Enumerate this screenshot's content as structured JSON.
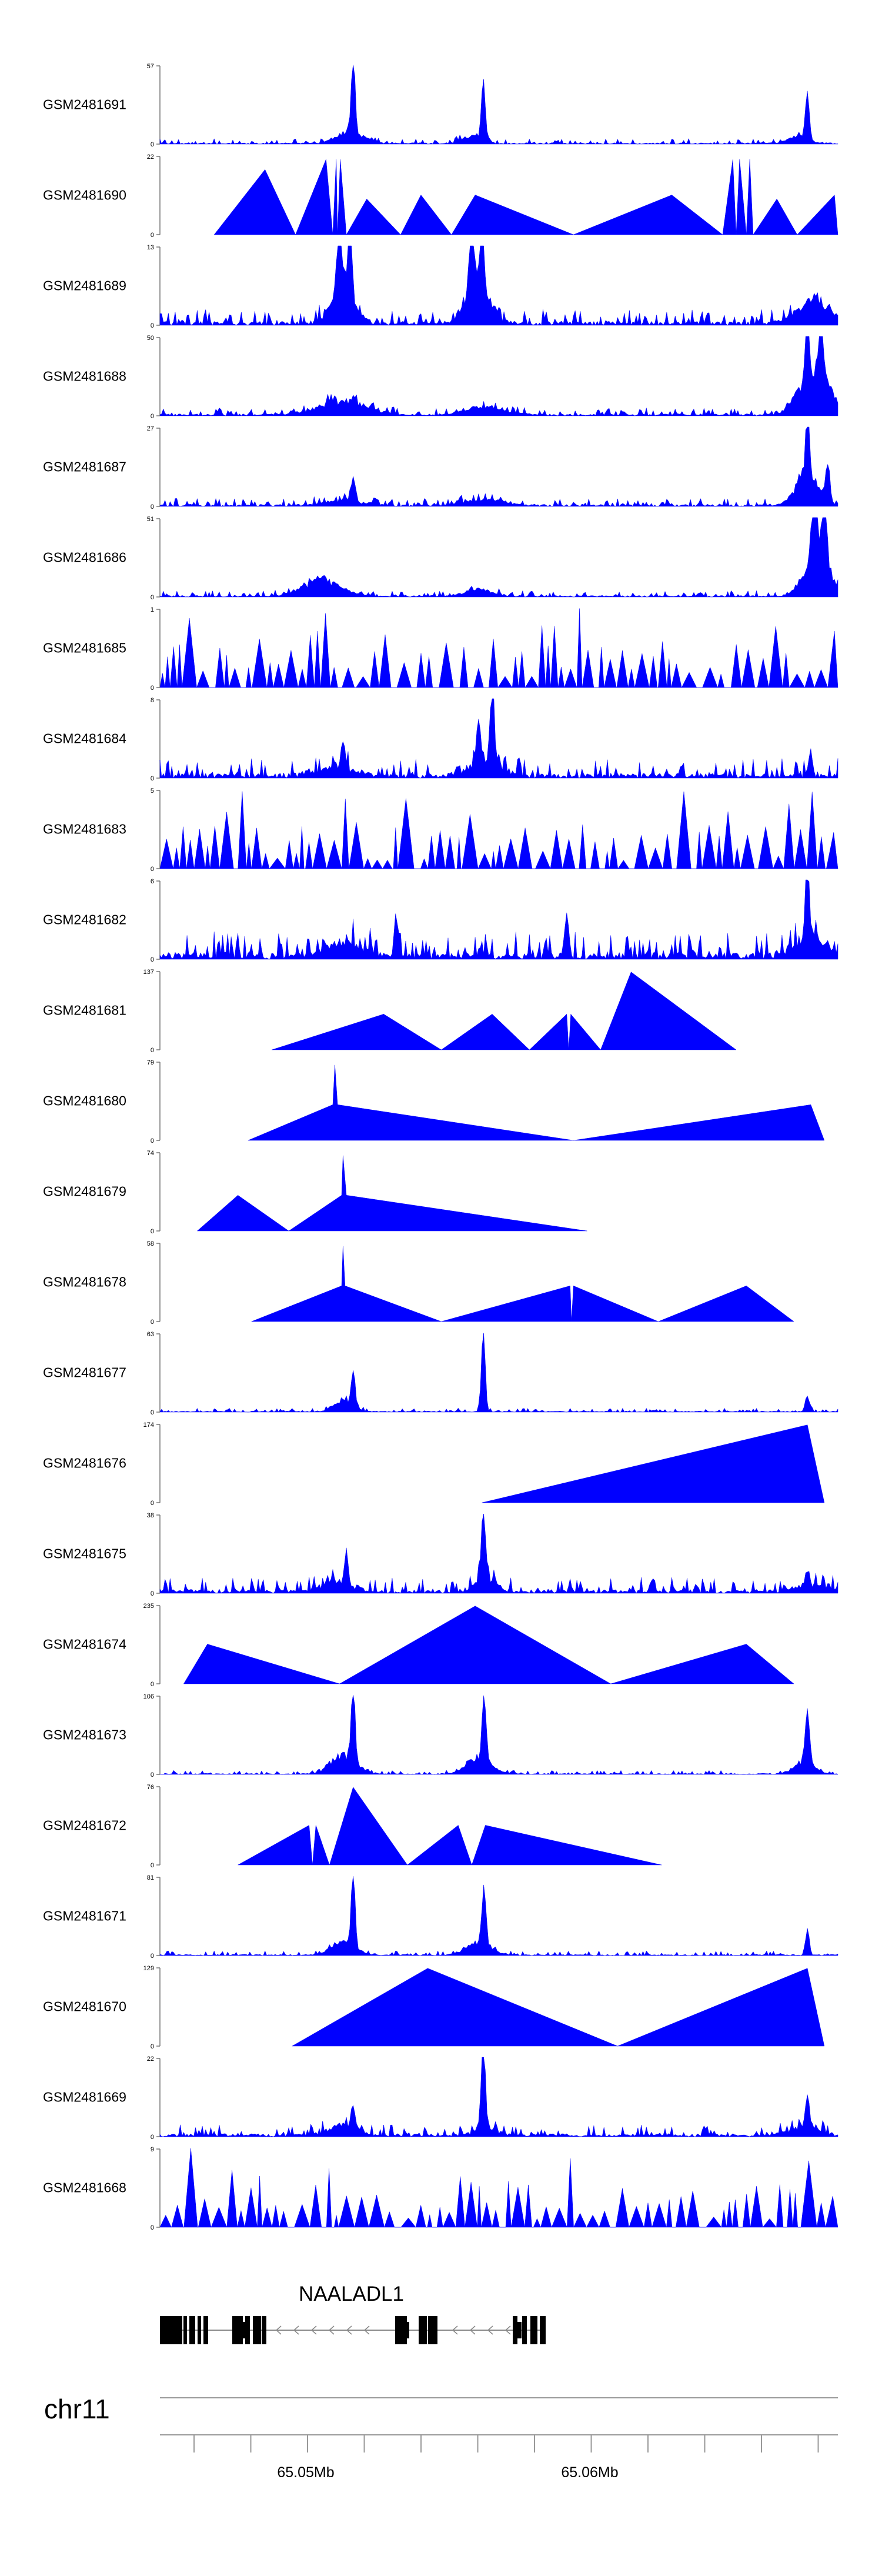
{
  "chart_data": {
    "type": "area",
    "title": "",
    "color": "#0000ff",
    "tracks": [
      {
        "label": "GSM2481691",
        "ymax": "57",
        "ymin": "0",
        "kind": "signal",
        "peaks": [
          [
            0.285,
            1.0,
            0.004
          ],
          [
            0.477,
            0.78,
            0.004
          ],
          [
            0.955,
            0.6,
            0.004
          ]
        ],
        "bumps": [
          [
            0.27,
            0.15,
            0.02
          ],
          [
            0.3,
            0.1,
            0.02
          ],
          [
            0.46,
            0.12,
            0.02
          ],
          [
            0.94,
            0.12,
            0.02
          ]
        ],
        "noise": 0.07,
        "seed": 11
      },
      {
        "label": "GSM2481690",
        "ymax": "22",
        "ymin": "0",
        "kind": "tri",
        "vertices": [
          [
            0.08,
            0
          ],
          [
            0.155,
            0.82
          ],
          [
            0.2,
            0
          ],
          [
            0.245,
            0.95
          ],
          [
            0.255,
            0
          ],
          [
            0.26,
            0.95
          ],
          [
            0.262,
            0
          ],
          [
            0.266,
            0.95
          ],
          [
            0.275,
            0
          ],
          [
            0.305,
            0.45
          ],
          [
            0.355,
            0
          ],
          [
            0.385,
            0.5
          ],
          [
            0.43,
            0
          ],
          [
            0.465,
            0.5
          ],
          [
            0.61,
            0
          ],
          [
            0.755,
            0.5
          ],
          [
            0.83,
            0
          ],
          [
            0.845,
            0.95
          ],
          [
            0.85,
            0
          ],
          [
            0.855,
            0.95
          ],
          [
            0.865,
            0
          ],
          [
            0.87,
            0.95
          ],
          [
            0.875,
            0
          ],
          [
            0.91,
            0.45
          ],
          [
            0.94,
            0
          ],
          [
            0.995,
            0.5
          ],
          [
            1.0,
            0
          ]
        ]
      },
      {
        "label": "GSM2481689",
        "ymax": "13",
        "ymin": "0",
        "kind": "signal",
        "peaks": [
          [
            0.265,
            0.75,
            0.006
          ],
          [
            0.28,
            0.8,
            0.005
          ],
          [
            0.46,
            0.9,
            0.005
          ],
          [
            0.475,
            1.0,
            0.004
          ]
        ],
        "bumps": [
          [
            0.27,
            0.45,
            0.025
          ],
          [
            0.47,
            0.55,
            0.025
          ],
          [
            0.965,
            0.35,
            0.035
          ]
        ],
        "noise": 0.2,
        "seed": 12
      },
      {
        "label": "GSM2481688",
        "ymax": "50",
        "ymin": "0",
        "kind": "signal",
        "peaks": [
          [
            0.975,
            1.0,
            0.004
          ],
          [
            0.955,
            0.85,
            0.004
          ]
        ],
        "bumps": [
          [
            0.27,
            0.22,
            0.05
          ],
          [
            0.48,
            0.12,
            0.04
          ],
          [
            0.965,
            0.7,
            0.03
          ]
        ],
        "noise": 0.1,
        "seed": 13
      },
      {
        "label": "GSM2481687",
        "ymax": "27",
        "ymin": "0",
        "kind": "signal",
        "peaks": [
          [
            0.955,
            1.0,
            0.004
          ],
          [
            0.985,
            0.45,
            0.004
          ],
          [
            0.285,
            0.3,
            0.004
          ]
        ],
        "bumps": [
          [
            0.955,
            0.45,
            0.025
          ],
          [
            0.27,
            0.08,
            0.04
          ],
          [
            0.48,
            0.1,
            0.04
          ]
        ],
        "noise": 0.1,
        "seed": 14
      },
      {
        "label": "GSM2481686",
        "ymax": "51",
        "ymin": "0",
        "kind": "signal",
        "peaks": [
          [
            0.965,
            0.95,
            0.005
          ],
          [
            0.98,
            0.88,
            0.005
          ]
        ],
        "bumps": [
          [
            0.24,
            0.25,
            0.04
          ],
          [
            0.47,
            0.1,
            0.03
          ],
          [
            0.97,
            0.7,
            0.025
          ]
        ],
        "noise": 0.08,
        "seed": 15
      },
      {
        "label": "GSM2481685",
        "ymax": "1",
        "ymin": "0",
        "kind": "spikes",
        "density": 60,
        "seed": 16
      },
      {
        "label": "GSM2481684",
        "ymax": "8",
        "ymin": "0",
        "kind": "signal",
        "peaks": [
          [
            0.49,
            1.0,
            0.004
          ],
          [
            0.47,
            0.55,
            0.004
          ],
          [
            0.27,
            0.35,
            0.004
          ],
          [
            0.96,
            0.3,
            0.004
          ]
        ],
        "bumps": [
          [
            0.48,
            0.25,
            0.03
          ],
          [
            0.26,
            0.12,
            0.04
          ]
        ],
        "noise": 0.25,
        "seed": 17
      },
      {
        "label": "GSM2481683",
        "ymax": "5",
        "ymin": "0",
        "kind": "spikes",
        "density": 90,
        "seed": 18
      },
      {
        "label": "GSM2481682",
        "ymax": "6",
        "ymin": "0",
        "kind": "signal",
        "peaks": [
          [
            0.955,
            1.0,
            0.004
          ],
          [
            0.6,
            0.55,
            0.004
          ],
          [
            0.35,
            0.45,
            0.004
          ]
        ],
        "bumps": [
          [
            0.27,
            0.2,
            0.04
          ],
          [
            0.96,
            0.3,
            0.03
          ]
        ],
        "noise": 0.35,
        "seed": 19
      },
      {
        "label": "GSM2481681",
        "ymax": "137",
        "ymin": "0",
        "kind": "tri",
        "vertices": [
          [
            0.165,
            0
          ],
          [
            0.33,
            0.45
          ],
          [
            0.415,
            0
          ],
          [
            0.49,
            0.45
          ],
          [
            0.545,
            0
          ],
          [
            0.6,
            0.45
          ],
          [
            0.603,
            0
          ],
          [
            0.606,
            0.45
          ],
          [
            0.65,
            0
          ],
          [
            0.695,
            0.98
          ],
          [
            0.85,
            0
          ]
        ]
      },
      {
        "label": "GSM2481680",
        "ymax": "79",
        "ymin": "0",
        "kind": "tri",
        "vertices": [
          [
            0.13,
            0
          ],
          [
            0.255,
            0.45
          ],
          [
            0.258,
            0.95
          ],
          [
            0.262,
            0.45
          ],
          [
            0.61,
            0
          ],
          [
            0.96,
            0.45
          ],
          [
            0.98,
            0
          ]
        ]
      },
      {
        "label": "GSM2481679",
        "ymax": "74",
        "ymin": "0",
        "kind": "tri",
        "vertices": [
          [
            0.055,
            0
          ],
          [
            0.115,
            0.45
          ],
          [
            0.19,
            0
          ],
          [
            0.268,
            0.45
          ],
          [
            0.27,
            0.95
          ],
          [
            0.275,
            0.45
          ],
          [
            0.63,
            0
          ]
        ]
      },
      {
        "label": "GSM2481678",
        "ymax": "58",
        "ymin": "0",
        "kind": "tri",
        "vertices": [
          [
            0.135,
            0
          ],
          [
            0.268,
            0.45
          ],
          [
            0.27,
            0.95
          ],
          [
            0.273,
            0.45
          ],
          [
            0.415,
            0
          ],
          [
            0.605,
            0.45
          ],
          [
            0.607,
            0
          ],
          [
            0.61,
            0.45
          ],
          [
            0.735,
            0
          ],
          [
            0.865,
            0.45
          ],
          [
            0.935,
            0
          ]
        ]
      },
      {
        "label": "GSM2481677",
        "ymax": "63",
        "ymin": "0",
        "kind": "signal",
        "peaks": [
          [
            0.477,
            1.0,
            0.004
          ],
          [
            0.285,
            0.45,
            0.004
          ],
          [
            0.955,
            0.2,
            0.004
          ]
        ],
        "bumps": [
          [
            0.27,
            0.18,
            0.02
          ]
        ],
        "noise": 0.05,
        "seed": 20
      },
      {
        "label": "GSM2481676",
        "ymax": "174",
        "ymin": "0",
        "kind": "tri",
        "vertices": [
          [
            0.475,
            0
          ],
          [
            0.955,
            0.98
          ],
          [
            0.98,
            0
          ]
        ]
      },
      {
        "label": "GSM2481675",
        "ymax": "38",
        "ymin": "0",
        "kind": "signal",
        "peaks": [
          [
            0.477,
            1.0,
            0.004
          ],
          [
            0.275,
            0.35,
            0.004
          ]
        ],
        "bumps": [
          [
            0.48,
            0.2,
            0.02
          ],
          [
            0.26,
            0.15,
            0.03
          ],
          [
            0.96,
            0.12,
            0.03
          ]
        ],
        "noise": 0.2,
        "seed": 21
      },
      {
        "label": "GSM2481674",
        "ymax": "235",
        "ymin": "0",
        "kind": "tri",
        "vertices": [
          [
            0.035,
            0
          ],
          [
            0.07,
            0.5
          ],
          [
            0.265,
            0
          ],
          [
            0.465,
            0.98
          ],
          [
            0.665,
            0
          ],
          [
            0.865,
            0.5
          ],
          [
            0.935,
            0
          ]
        ]
      },
      {
        "label": "GSM2481673",
        "ymax": "106",
        "ymin": "0",
        "kind": "signal",
        "peaks": [
          [
            0.285,
            1.0,
            0.004
          ],
          [
            0.478,
            0.85,
            0.004
          ],
          [
            0.955,
            0.7,
            0.004
          ]
        ],
        "bumps": [
          [
            0.27,
            0.3,
            0.025
          ],
          [
            0.47,
            0.25,
            0.025
          ],
          [
            0.95,
            0.2,
            0.02
          ]
        ],
        "noise": 0.05,
        "seed": 22
      },
      {
        "label": "GSM2481672",
        "ymax": "76",
        "ymin": "0",
        "kind": "tri",
        "vertices": [
          [
            0.115,
            0
          ],
          [
            0.22,
            0.5
          ],
          [
            0.225,
            0
          ],
          [
            0.23,
            0.5
          ],
          [
            0.25,
            0
          ],
          [
            0.285,
            0.98
          ],
          [
            0.365,
            0
          ],
          [
            0.44,
            0.5
          ],
          [
            0.46,
            0
          ],
          [
            0.48,
            0.5
          ],
          [
            0.74,
            0
          ]
        ]
      },
      {
        "label": "GSM2481671",
        "ymax": "81",
        "ymin": "0",
        "kind": "signal",
        "peaks": [
          [
            0.285,
            1.0,
            0.004
          ],
          [
            0.478,
            0.72,
            0.004
          ],
          [
            0.955,
            0.3,
            0.004
          ]
        ],
        "bumps": [
          [
            0.27,
            0.2,
            0.025
          ],
          [
            0.47,
            0.2,
            0.025
          ]
        ],
        "noise": 0.06,
        "seed": 23
      },
      {
        "label": "GSM2481670",
        "ymax": "129",
        "ymin": "0",
        "kind": "tri",
        "vertices": [
          [
            0.195,
            0
          ],
          [
            0.395,
            0.98
          ],
          [
            0.675,
            0
          ],
          [
            0.955,
            0.98
          ],
          [
            0.98,
            0
          ]
        ]
      },
      {
        "label": "GSM2481669",
        "ymax": "22",
        "ymin": "0",
        "kind": "signal",
        "peaks": [
          [
            0.477,
            1.0,
            0.004
          ],
          [
            0.955,
            0.4,
            0.004
          ],
          [
            0.285,
            0.3,
            0.004
          ]
        ],
        "bumps": [
          [
            0.27,
            0.15,
            0.03
          ],
          [
            0.48,
            0.15,
            0.02
          ],
          [
            0.95,
            0.15,
            0.03
          ]
        ],
        "noise": 0.15,
        "seed": 24
      },
      {
        "label": "GSM2481668",
        "ymax": "9",
        "ymin": "0",
        "kind": "spikes",
        "density": 70,
        "seed": 25
      }
    ],
    "gene": {
      "name": "NAALADL1",
      "strand": "-"
    },
    "chromosome": "chr11",
    "xaxis": {
      "tick_labels": [
        "65.05Mb",
        "65.06Mb"
      ],
      "minor_ticks": 12
    }
  }
}
